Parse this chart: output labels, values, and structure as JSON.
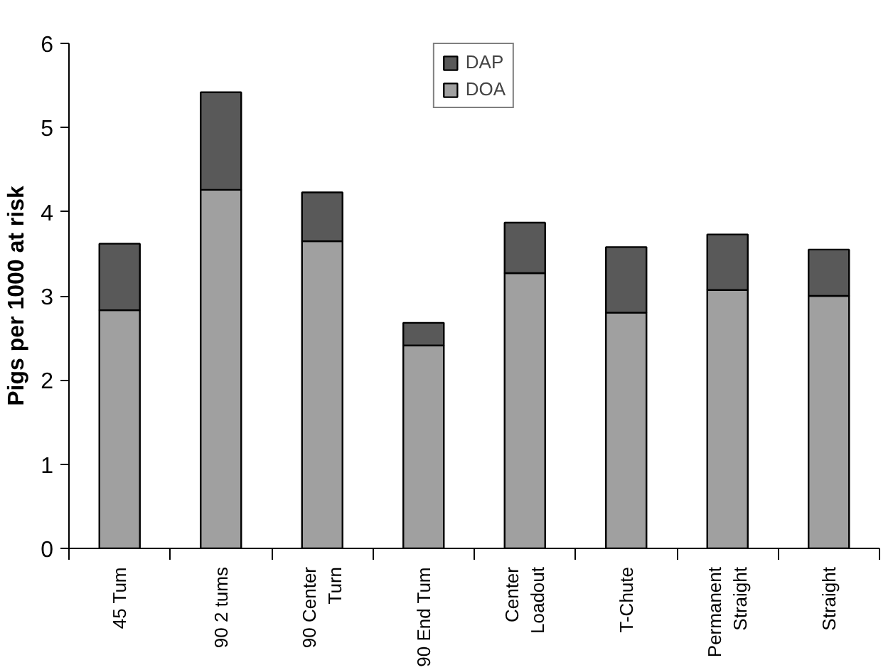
{
  "chart_data": {
    "type": "bar",
    "stacked": true,
    "ylabel": "Pigs per 1000 at risk",
    "categories": [
      "45 Tum",
      "90 2 tums",
      "90 Center Turn",
      "90 End Tum",
      "Center Loadout",
      "T-Chute",
      "Permanent Straight",
      "Straight"
    ],
    "series": [
      {
        "name": "DOA",
        "color": "#a0a0a0",
        "values": [
          2.83,
          4.26,
          3.65,
          2.41,
          3.27,
          2.8,
          3.07,
          3.0
        ]
      },
      {
        "name": "DAP",
        "color": "#595959",
        "values": [
          0.79,
          1.16,
          0.58,
          0.27,
          0.6,
          0.78,
          0.66,
          0.55
        ]
      }
    ],
    "ylim": [
      0,
      6
    ],
    "yticks": [
      0,
      1,
      2,
      3,
      4,
      5,
      6
    ],
    "grid": false,
    "legend": "top"
  }
}
